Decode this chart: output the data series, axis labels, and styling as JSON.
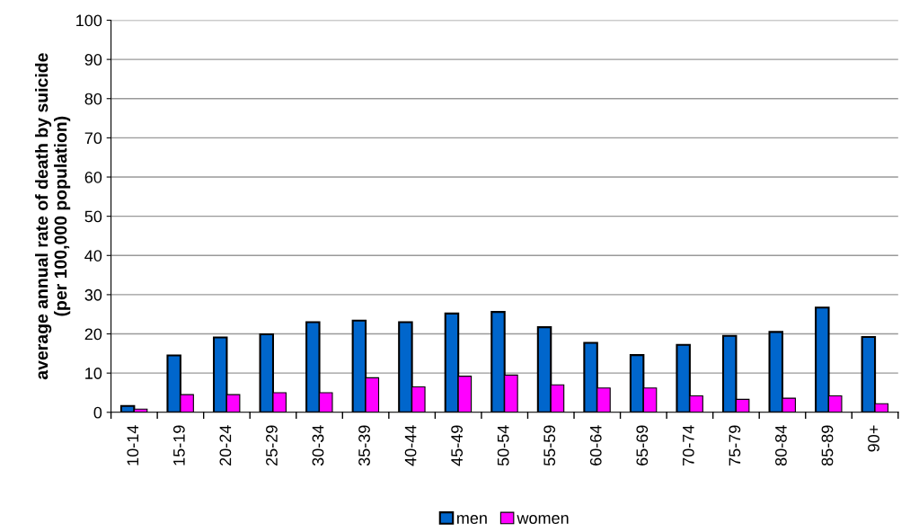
{
  "chart_data": {
    "type": "bar",
    "ylabel": "average annual rate of death by suicide\n(per 100,000 population)",
    "categories": [
      "10-14",
      "15-19",
      "20-24",
      "25-29",
      "30-34",
      "35-39",
      "40-44",
      "45-49",
      "50-54",
      "55-59",
      "60-64",
      "65-69",
      "70-74",
      "75-79",
      "80-84",
      "85-89",
      "90+"
    ],
    "series": [
      {
        "name": "men",
        "color": "#0066cc",
        "values": [
          1.6,
          14.5,
          19.1,
          19.9,
          23.0,
          23.4,
          23.0,
          25.2,
          25.6,
          21.7,
          17.7,
          14.6,
          17.2,
          19.5,
          20.5,
          26.7,
          19.2
        ]
      },
      {
        "name": "women",
        "color": "#ff00ff",
        "values": [
          0.8,
          4.5,
          4.5,
          5.0,
          5.0,
          8.8,
          6.5,
          9.2,
          9.5,
          7.0,
          6.2,
          6.2,
          4.2,
          3.3,
          3.6,
          4.2,
          2.2
        ]
      }
    ],
    "ylim": [
      0,
      100
    ],
    "yticks": [
      0,
      10,
      20,
      30,
      40,
      50,
      60,
      70,
      80,
      90,
      100
    ],
    "grid": "y",
    "legend": "bottom"
  }
}
